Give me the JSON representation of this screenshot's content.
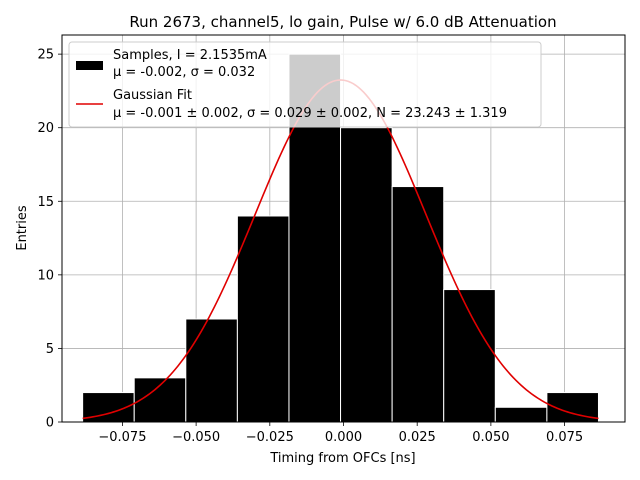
{
  "chart_data": {
    "type": "bar",
    "title": "Run 2673, channel5, lo gain, Pulse w/ 6.0 dB Attenuation",
    "xlabel": "Timing from OFCs [ns]",
    "ylabel": "Entries",
    "xlim": [
      -0.0955,
      0.0955
    ],
    "ylim": [
      0,
      26.3
    ],
    "grid": true,
    "xticks": [
      -0.075,
      -0.05,
      -0.025,
      0.0,
      0.025,
      0.05,
      0.075
    ],
    "xtick_labels": [
      "−0.075",
      "−0.050",
      "−0.025",
      "0.000",
      "0.025",
      "0.050",
      "0.075"
    ],
    "yticks": [
      0,
      5,
      10,
      15,
      20,
      25
    ],
    "ytick_labels": [
      "0",
      "5",
      "10",
      "15",
      "20",
      "25"
    ],
    "histogram": {
      "bin_edges": [
        -0.0885,
        -0.071,
        -0.0535,
        -0.036,
        -0.0185,
        -0.001,
        0.0165,
        0.034,
        0.0515,
        0.069,
        0.0865
      ],
      "counts": [
        2,
        3,
        7,
        14,
        25,
        20,
        16,
        9,
        1,
        2
      ],
      "color": "#000000",
      "edgecolor": "#ffffff"
    },
    "fit": {
      "type": "gaussian",
      "mu": -0.001,
      "sigma": 0.029,
      "N": 23.243,
      "x_range": [
        -0.0885,
        0.0865
      ],
      "color": "#e00000"
    },
    "legend": {
      "location": "upper-left",
      "entries": [
        {
          "kind": "patch",
          "line1": "Samples, I = 2.1535mA",
          "line2": "μ = -0.002, σ = 0.032"
        },
        {
          "kind": "line",
          "line1": "Gaussian Fit",
          "line2": "μ = -0.001 ± 0.002, σ = 0.029 ± 0.002, N = 23.243 ± 1.319"
        }
      ]
    }
  }
}
